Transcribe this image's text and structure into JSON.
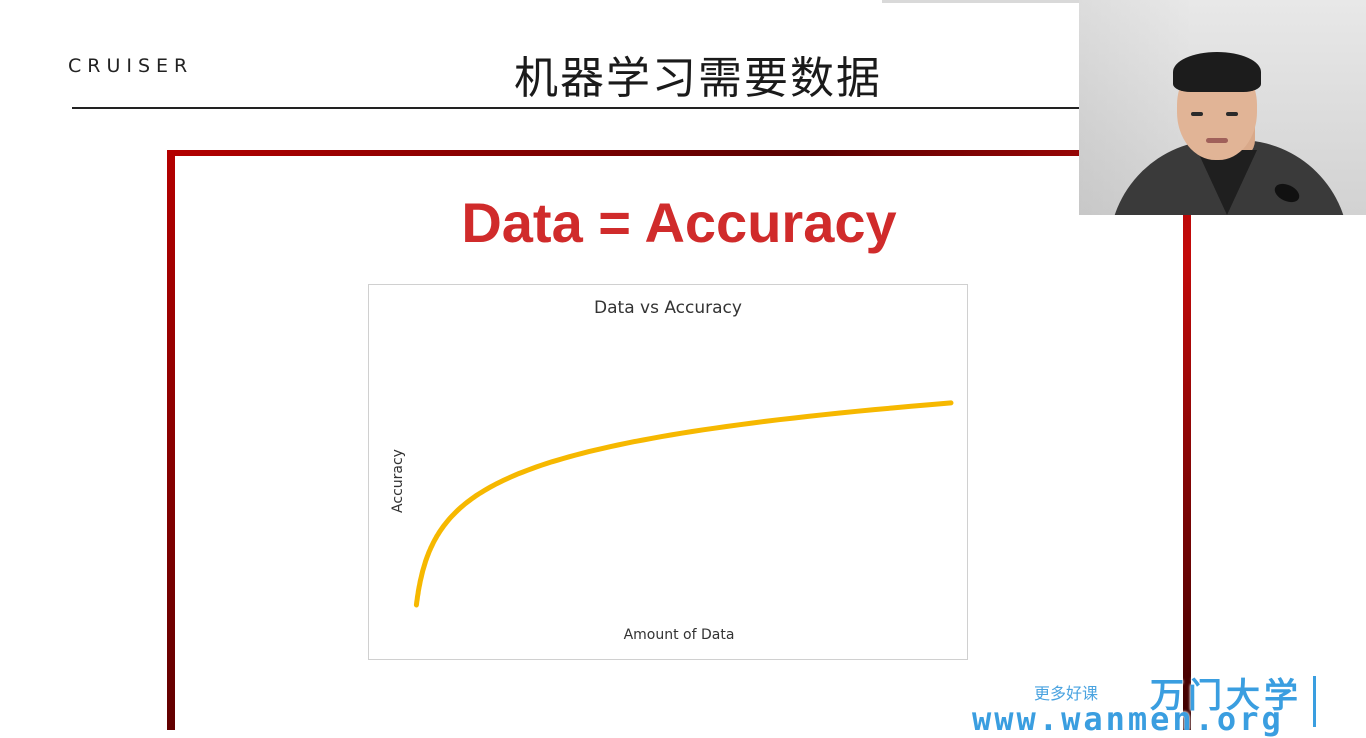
{
  "slide": {
    "logo_text": "CRUISER",
    "title": "机器学习需要数据",
    "headline": "Data = Accuracy"
  },
  "chart_data": {
    "type": "line",
    "title": "Data vs Accuracy",
    "xlabel": "Amount of Data",
    "ylabel": "Accuracy",
    "series": [
      {
        "curve": "logarithmic",
        "color": "#f6b800"
      }
    ],
    "x": [
      1,
      5,
      10,
      20,
      40,
      60,
      80,
      100
    ],
    "y": [
      0.0,
      0.4,
      0.5,
      0.62,
      0.72,
      0.78,
      0.83,
      0.86
    ],
    "xlim": [
      0,
      100
    ],
    "ylim": [
      0,
      1
    ],
    "grid": false,
    "ticks_shown": false
  },
  "watermark": {
    "small_text": "更多好课",
    "brand": "万门大学",
    "url": "www.wanmen.org"
  },
  "colors": {
    "headline": "#d02b2b",
    "frame": "#b40000",
    "curve": "#f6b800",
    "watermark": "#3a9ee0"
  }
}
